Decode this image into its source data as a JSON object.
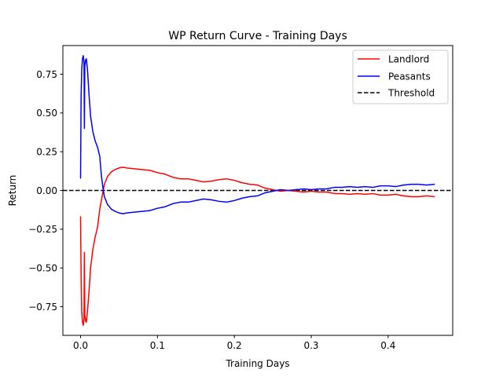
{
  "chart_data": {
    "type": "line",
    "title": "WP Return Curve - Training Days",
    "xlabel": "Training Days",
    "ylabel": "Return",
    "xlim": [
      -0.023,
      0.484
    ],
    "ylim": [
      -0.935,
      0.935
    ],
    "x_ticks": [
      {
        "value": 0.0,
        "label": "0.0"
      },
      {
        "value": 0.1,
        "label": "0.1"
      },
      {
        "value": 0.2,
        "label": "0.2"
      },
      {
        "value": 0.3,
        "label": "0.3"
      },
      {
        "value": 0.4,
        "label": "0.4"
      }
    ],
    "y_ticks": [
      {
        "value": 0.75,
        "label": "0.75"
      },
      {
        "value": 0.5,
        "label": "0.50"
      },
      {
        "value": 0.25,
        "label": "0.25"
      },
      {
        "value": 0.0,
        "label": "0.00"
      },
      {
        "value": -0.25,
        "label": "−0.25"
      },
      {
        "value": -0.5,
        "label": "−0.50"
      },
      {
        "value": -0.75,
        "label": "−0.75"
      }
    ],
    "grid": false,
    "legend_position": "top-right",
    "series": [
      {
        "name": "Landlord",
        "color": "#ff0000",
        "style": "solid",
        "points": [
          [
            0.0,
            -0.17
          ],
          [
            0.0007,
            -0.55
          ],
          [
            0.0015,
            -0.78
          ],
          [
            0.0025,
            -0.85
          ],
          [
            0.0035,
            -0.87
          ],
          [
            0.0045,
            -0.83
          ],
          [
            0.005,
            -0.4
          ],
          [
            0.0055,
            -0.8
          ],
          [
            0.0065,
            -0.84
          ],
          [
            0.0075,
            -0.85
          ],
          [
            0.009,
            -0.78
          ],
          [
            0.011,
            -0.65
          ],
          [
            0.013,
            -0.5
          ],
          [
            0.016,
            -0.38
          ],
          [
            0.019,
            -0.3
          ],
          [
            0.022,
            -0.24
          ],
          [
            0.025,
            -0.12
          ],
          [
            0.028,
            -0.04
          ],
          [
            0.031,
            0.04
          ],
          [
            0.035,
            0.09
          ],
          [
            0.04,
            0.12
          ],
          [
            0.045,
            0.135
          ],
          [
            0.05,
            0.145
          ],
          [
            0.055,
            0.15
          ],
          [
            0.06,
            0.145
          ],
          [
            0.07,
            0.14
          ],
          [
            0.08,
            0.135
          ],
          [
            0.09,
            0.13
          ],
          [
            0.1,
            0.115
          ],
          [
            0.11,
            0.105
          ],
          [
            0.12,
            0.085
          ],
          [
            0.13,
            0.075
          ],
          [
            0.14,
            0.075
          ],
          [
            0.15,
            0.065
          ],
          [
            0.16,
            0.055
          ],
          [
            0.17,
            0.06
          ],
          [
            0.18,
            0.07
          ],
          [
            0.19,
            0.075
          ],
          [
            0.2,
            0.065
          ],
          [
            0.21,
            0.05
          ],
          [
            0.22,
            0.04
          ],
          [
            0.23,
            0.035
          ],
          [
            0.24,
            0.015
          ],
          [
            0.25,
            0.005
          ],
          [
            0.26,
            -0.005
          ],
          [
            0.27,
            0.0
          ],
          [
            0.28,
            -0.005
          ],
          [
            0.29,
            -0.01
          ],
          [
            0.3,
            -0.005
          ],
          [
            0.31,
            -0.01
          ],
          [
            0.32,
            -0.01
          ],
          [
            0.33,
            -0.02
          ],
          [
            0.34,
            -0.02
          ],
          [
            0.35,
            -0.025
          ],
          [
            0.36,
            -0.02
          ],
          [
            0.37,
            -0.025
          ],
          [
            0.38,
            -0.02
          ],
          [
            0.39,
            -0.03
          ],
          [
            0.4,
            -0.03
          ],
          [
            0.41,
            -0.025
          ],
          [
            0.42,
            -0.035
          ],
          [
            0.43,
            -0.04
          ],
          [
            0.44,
            -0.04
          ],
          [
            0.45,
            -0.035
          ],
          [
            0.46,
            -0.04
          ]
        ]
      },
      {
        "name": "Peasants",
        "color": "#0000ff",
        "style": "solid",
        "points": [
          [
            0.0,
            0.08
          ],
          [
            0.0007,
            0.6
          ],
          [
            0.0015,
            0.78
          ],
          [
            0.0025,
            0.85
          ],
          [
            0.0035,
            0.87
          ],
          [
            0.0045,
            0.83
          ],
          [
            0.005,
            0.4
          ],
          [
            0.0055,
            0.8
          ],
          [
            0.0065,
            0.84
          ],
          [
            0.0075,
            0.85
          ],
          [
            0.009,
            0.78
          ],
          [
            0.011,
            0.62
          ],
          [
            0.013,
            0.48
          ],
          [
            0.016,
            0.38
          ],
          [
            0.019,
            0.32
          ],
          [
            0.022,
            0.28
          ],
          [
            0.025,
            0.22
          ],
          [
            0.027,
            0.1
          ],
          [
            0.029,
            0.02
          ],
          [
            0.031,
            -0.04
          ],
          [
            0.035,
            -0.09
          ],
          [
            0.04,
            -0.12
          ],
          [
            0.045,
            -0.135
          ],
          [
            0.05,
            -0.145
          ],
          [
            0.055,
            -0.15
          ],
          [
            0.06,
            -0.145
          ],
          [
            0.07,
            -0.14
          ],
          [
            0.08,
            -0.135
          ],
          [
            0.09,
            -0.13
          ],
          [
            0.1,
            -0.115
          ],
          [
            0.11,
            -0.105
          ],
          [
            0.12,
            -0.085
          ],
          [
            0.13,
            -0.075
          ],
          [
            0.14,
            -0.075
          ],
          [
            0.15,
            -0.065
          ],
          [
            0.16,
            -0.055
          ],
          [
            0.17,
            -0.06
          ],
          [
            0.18,
            -0.07
          ],
          [
            0.19,
            -0.075
          ],
          [
            0.2,
            -0.065
          ],
          [
            0.21,
            -0.05
          ],
          [
            0.22,
            -0.04
          ],
          [
            0.23,
            -0.035
          ],
          [
            0.24,
            -0.015
          ],
          [
            0.25,
            -0.005
          ],
          [
            0.26,
            0.005
          ],
          [
            0.27,
            0.0
          ],
          [
            0.28,
            0.005
          ],
          [
            0.29,
            0.01
          ],
          [
            0.3,
            0.005
          ],
          [
            0.31,
            0.01
          ],
          [
            0.32,
            0.01
          ],
          [
            0.33,
            0.02
          ],
          [
            0.34,
            0.02
          ],
          [
            0.35,
            0.025
          ],
          [
            0.36,
            0.02
          ],
          [
            0.37,
            0.025
          ],
          [
            0.38,
            0.02
          ],
          [
            0.39,
            0.03
          ],
          [
            0.4,
            0.03
          ],
          [
            0.41,
            0.025
          ],
          [
            0.42,
            0.035
          ],
          [
            0.43,
            0.04
          ],
          [
            0.44,
            0.04
          ],
          [
            0.45,
            0.035
          ],
          [
            0.46,
            0.04
          ]
        ]
      }
    ],
    "reference_lines": [
      {
        "name": "Threshold",
        "orientation": "horizontal",
        "value": 0.0,
        "color": "#000000",
        "style": "dashed"
      }
    ]
  }
}
